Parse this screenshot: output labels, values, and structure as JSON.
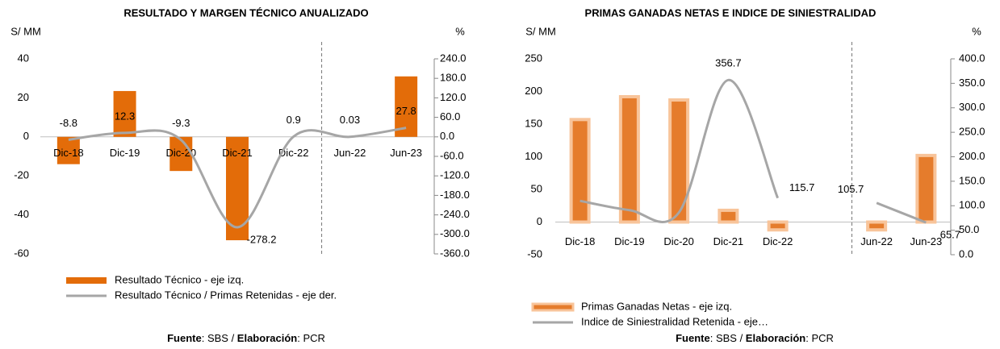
{
  "charts": [
    {
      "chart_data": {
        "type": "bar_line",
        "title": "RESULTADO Y MARGEN TÉCNICO ANUALIZADO",
        "y_label": "S/ MM",
        "y2_label": "%",
        "categories": [
          "Dic-18",
          "Dic-19",
          "Dic-20",
          "Dic-21",
          "Dic-22",
          "Jun-22",
          "Jun-23"
        ],
        "series": [
          {
            "name": "Resultado Técnico - eje izq.",
            "color": "#e36c09",
            "kind": "bar",
            "values": [
              -14,
              23.5,
              -17.5,
              -53,
              0,
              0,
              31
            ]
          },
          {
            "name": "Resultado Técnico / Primas Retenidas - eje der.",
            "color": "#a6a6a6",
            "kind": "line",
            "axis": "y2",
            "values": [
              -8.8,
              12.3,
              -9.3,
              -278.2,
              0.9,
              0.03,
              27.8
            ]
          }
        ],
        "ylim": [
          -60,
          40
        ],
        "yticks": [
          -60,
          -40,
          -20,
          0,
          20,
          40
        ],
        "y2lim": [
          -360,
          240
        ],
        "y2ticks": [
          {
            "value": -360,
            "label": "-360.0"
          },
          {
            "value": -300,
            "label": "-300.0"
          },
          {
            "value": -240,
            "label": "-240.0"
          },
          {
            "value": -180,
            "label": "-180.0"
          },
          {
            "value": -120,
            "label": "-120.0"
          },
          {
            "value": -60,
            "label": "-60.0"
          },
          {
            "value": 0,
            "label": "0.0"
          },
          {
            "value": 60,
            "label": "60.0"
          },
          {
            "value": 120,
            "label": "120.0"
          },
          {
            "value": 180,
            "label": "180.0"
          },
          {
            "value": 240,
            "label": "240.0"
          }
        ],
        "source": [
          "Fuente",
          ": SBS / ",
          "Elaboración",
          ": PCR"
        ]
      }
    },
    {
      "chart_data": {
        "type": "bar_line",
        "title": "PRIMAS GANADAS NETAS E INDICE DE SINIESTRALIDAD",
        "y_label": "S/ MM",
        "y2_label": "%",
        "categories": [
          "Dic-18",
          "Dic-19",
          "Dic-20",
          "Dic-21",
          "Dic-22",
          null,
          "Jun-22",
          "Jun-23"
        ],
        "series": [
          {
            "name": "Primas Ganadas Netas - eje izq.",
            "color": "#e57c2c",
            "kind": "bar",
            "values": [
              157,
              192,
              187,
              18,
              -12,
              null,
              -12,
              102
            ]
          },
          {
            "name": "Indice de Siniestralidad Retenida - eje…",
            "color": "#a6a6a6",
            "kind": "line",
            "axis": "y2",
            "values": [
              110,
              91,
              86,
              356.7,
              115.7,
              null,
              105.7,
              65.7
            ],
            "value_labels": [
              null,
              null,
              null,
              "356.7",
              "115.7",
              null,
              "105.7",
              "65.7"
            ]
          }
        ],
        "ylim": [
          -50,
          250
        ],
        "yticks": [
          -50,
          0,
          50,
          100,
          150,
          200,
          250
        ],
        "y2lim": [
          0,
          400
        ],
        "y2ticks": [
          {
            "value": 0,
            "label": "0.0"
          },
          {
            "value": 50,
            "label": "50.0"
          },
          {
            "value": 100,
            "label": "100.0"
          },
          {
            "value": 150,
            "label": "150.0"
          },
          {
            "value": 200,
            "label": "200.0"
          },
          {
            "value": 250,
            "label": "250.0"
          },
          {
            "value": 300,
            "label": "300.0"
          },
          {
            "value": 350,
            "label": "350.0"
          },
          {
            "value": 400,
            "label": "400.0"
          }
        ],
        "source": [
          "Fuente",
          ": SBS / ",
          "Elaboración",
          ": PCR"
        ]
      }
    }
  ]
}
